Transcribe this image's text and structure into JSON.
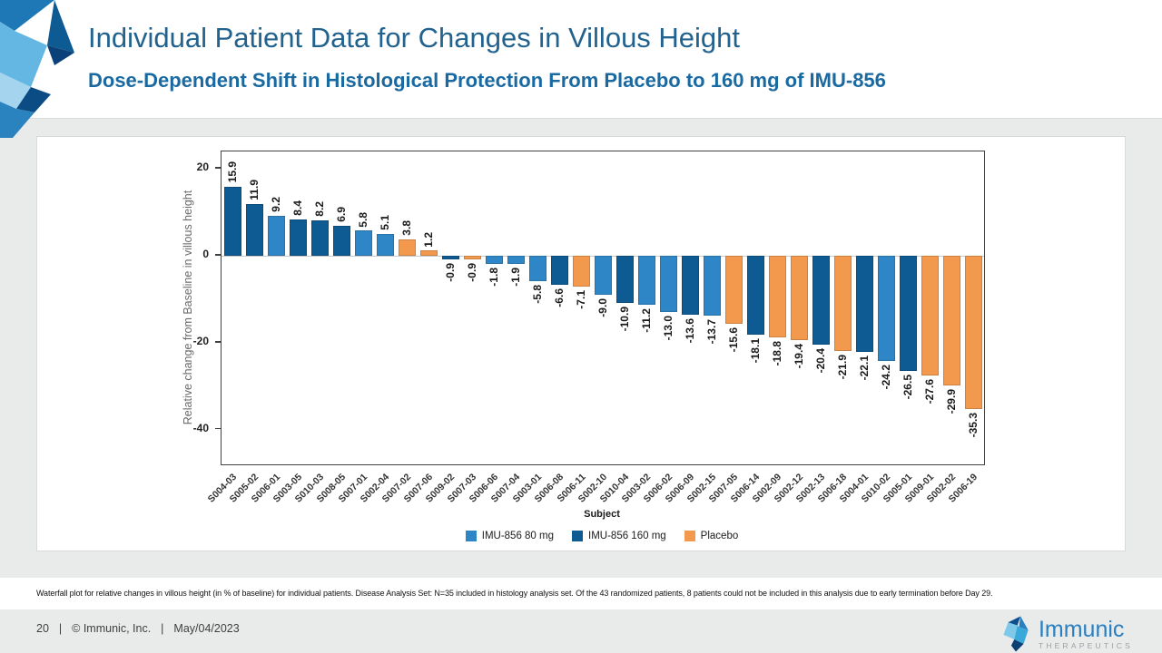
{
  "slide": {
    "title": "Individual Patient Data for Changes in Villous Height",
    "subtitle": "Dose-Dependent Shift in Histological Protection From Placebo to 160 mg of IMU-856",
    "footnote": "Waterfall plot for relative changes in villous height (in % of baseline) for individual patients. Disease Analysis Set: N=35 included in histology analysis set. Of the 43 randomized patients, 8 patients could not be included in this analysis due to early termination before Day 29.",
    "footer": {
      "page": "20",
      "separator": "|",
      "copyright": "© Immunic, Inc.",
      "date": "May/04/2023"
    },
    "brand": {
      "name": "Immunic",
      "tagline": "THERAPEUTICS"
    },
    "colors": {
      "title_blue": "#21628e",
      "subtitle_blue": "#1a6aa1",
      "background_gray": "#e9ebea",
      "panel_white": "#ffffff"
    }
  },
  "chart_data": {
    "type": "bar",
    "subtype": "waterfall",
    "xlabel": "Subject",
    "ylabel": "Relative change from Baseline in villous height",
    "ylim": [
      -48,
      24
    ],
    "yticks": [
      20,
      0,
      -20,
      -40
    ],
    "grid": "zero-line-only",
    "legend_position": "bottom-center",
    "group_colors": {
      "imu80": "#2e86c6",
      "imu160": "#0e5a92",
      "placebo": "#f2994e"
    },
    "legend": [
      {
        "label": "IMU-856 80 mg",
        "group": "imu80"
      },
      {
        "label": "IMU-856 160 mg",
        "group": "imu160"
      },
      {
        "label": "Placebo",
        "group": "placebo"
      }
    ],
    "points": [
      {
        "subject": "S004-03",
        "value": 15.9,
        "group": "imu160"
      },
      {
        "subject": "S005-02",
        "value": 11.9,
        "group": "imu160"
      },
      {
        "subject": "S006-01",
        "value": 9.2,
        "group": "imu80"
      },
      {
        "subject": "S003-05",
        "value": 8.4,
        "group": "imu160"
      },
      {
        "subject": "S010-03",
        "value": 8.2,
        "group": "imu160"
      },
      {
        "subject": "S008-05",
        "value": 6.9,
        "group": "imu160"
      },
      {
        "subject": "S007-01",
        "value": 5.8,
        "group": "imu80"
      },
      {
        "subject": "S002-04",
        "value": 5.1,
        "group": "imu80"
      },
      {
        "subject": "S007-02",
        "value": 3.8,
        "group": "placebo"
      },
      {
        "subject": "S007-06",
        "value": 1.2,
        "group": "placebo"
      },
      {
        "subject": "S009-02",
        "value": -0.9,
        "group": "imu160"
      },
      {
        "subject": "S007-03",
        "value": -0.9,
        "group": "placebo"
      },
      {
        "subject": "S006-06",
        "value": -1.8,
        "group": "imu80"
      },
      {
        "subject": "S007-04",
        "value": -1.9,
        "group": "imu80"
      },
      {
        "subject": "S003-01",
        "value": -5.8,
        "group": "imu80"
      },
      {
        "subject": "S006-08",
        "value": -6.6,
        "group": "imu160"
      },
      {
        "subject": "S006-11",
        "value": -7.1,
        "group": "placebo"
      },
      {
        "subject": "S002-10",
        "value": -9.0,
        "group": "imu80"
      },
      {
        "subject": "S010-04",
        "value": -10.9,
        "group": "imu160"
      },
      {
        "subject": "S003-02",
        "value": -11.2,
        "group": "imu80"
      },
      {
        "subject": "S006-02",
        "value": -13.0,
        "group": "imu80"
      },
      {
        "subject": "S006-09",
        "value": -13.6,
        "group": "imu160"
      },
      {
        "subject": "S002-15",
        "value": -13.7,
        "group": "imu80"
      },
      {
        "subject": "S007-05",
        "value": -15.6,
        "group": "placebo"
      },
      {
        "subject": "S006-14",
        "value": -18.1,
        "group": "imu160"
      },
      {
        "subject": "S002-09",
        "value": -18.8,
        "group": "placebo"
      },
      {
        "subject": "S002-12",
        "value": -19.4,
        "group": "placebo"
      },
      {
        "subject": "S002-13",
        "value": -20.4,
        "group": "imu160"
      },
      {
        "subject": "S006-18",
        "value": -21.9,
        "group": "placebo"
      },
      {
        "subject": "S004-01",
        "value": -22.1,
        "group": "imu160"
      },
      {
        "subject": "S010-02",
        "value": -24.2,
        "group": "imu80"
      },
      {
        "subject": "S005-01",
        "value": -26.5,
        "group": "imu160"
      },
      {
        "subject": "S009-01",
        "value": -27.6,
        "group": "placebo"
      },
      {
        "subject": "S002-02",
        "value": -29.9,
        "group": "placebo"
      },
      {
        "subject": "S006-19",
        "value": -35.3,
        "group": "placebo"
      }
    ]
  }
}
